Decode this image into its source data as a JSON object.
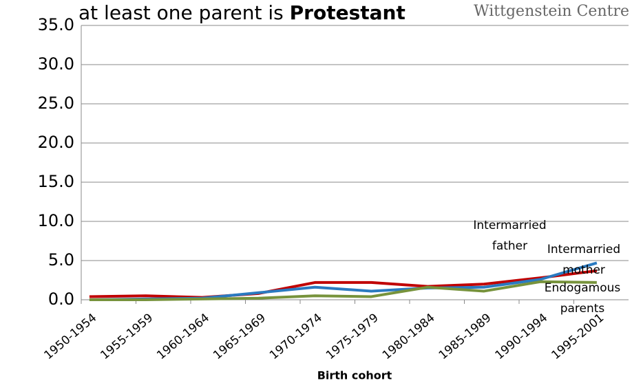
{
  "chart_data": {
    "type": "line",
    "title": "at least one parent is",
    "title_emphasis": "Protestant",
    "logo": "Wittgenstein Centre",
    "x_label": "Birth cohort",
    "categories": [
      "1950-1954",
      "1955-1959",
      "1960-1964",
      "1965-1969",
      "1970-1974",
      "1975-1979",
      "1980-1984",
      "1985-1989",
      "1990-1994",
      "1995-2001"
    ],
    "series": [
      {
        "name": "Intermarried father",
        "color": "#c00000",
        "values": [
          0.4,
          0.5,
          0.3,
          0.8,
          2.2,
          2.2,
          1.7,
          2.0,
          2.8,
          3.7
        ]
      },
      {
        "name": "Intermarried mother",
        "color": "#2a7ac0",
        "values": [
          0.0,
          0.1,
          0.2,
          0.9,
          1.6,
          1.1,
          1.5,
          1.6,
          2.6,
          4.7
        ]
      },
      {
        "name": "Endogamous parents",
        "color": "#77933c",
        "values": [
          0.0,
          0.0,
          0.1,
          0.2,
          0.5,
          0.4,
          1.6,
          1.1,
          2.3,
          2.2
        ]
      }
    ],
    "ylim": [
      0,
      35
    ],
    "yticks": [
      {
        "value": 0,
        "label": "0.0"
      },
      {
        "value": 5,
        "label": "5.0"
      },
      {
        "value": 10,
        "label": "10.0"
      },
      {
        "value": 15,
        "label": "15.0"
      },
      {
        "value": 20,
        "label": "20.0"
      },
      {
        "value": 25,
        "label": "25.0"
      },
      {
        "value": 30,
        "label": "30.0"
      },
      {
        "value": 35,
        "label": "35.0"
      }
    ],
    "grid": true
  }
}
